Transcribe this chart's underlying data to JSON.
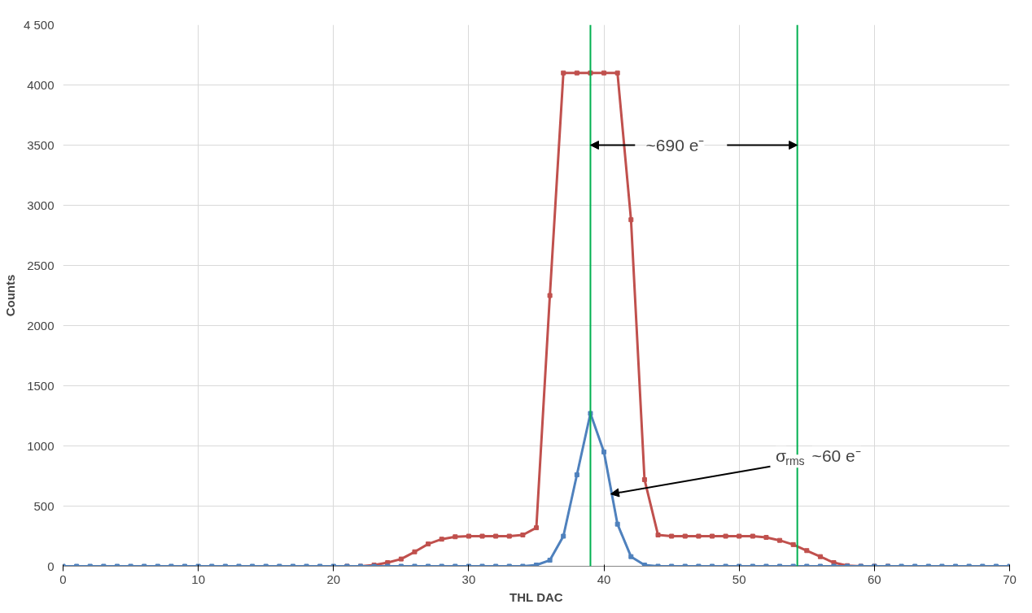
{
  "chart_data": {
    "type": "line",
    "xlabel": "THL DAC",
    "ylabel": "Counts",
    "x": [
      0,
      1,
      2,
      3,
      4,
      5,
      6,
      7,
      8,
      9,
      10,
      11,
      12,
      13,
      14,
      15,
      16,
      17,
      18,
      19,
      20,
      21,
      22,
      23,
      24,
      25,
      26,
      27,
      28,
      29,
      30,
      31,
      32,
      33,
      34,
      35,
      36,
      37,
      38,
      39,
      40,
      41,
      42,
      43,
      44,
      45,
      46,
      47,
      48,
      49,
      50,
      51,
      52,
      53,
      54,
      55,
      56,
      57,
      58,
      59,
      60,
      61,
      62,
      63,
      64,
      65,
      66,
      67,
      68,
      69,
      70
    ],
    "series": [
      {
        "color": "#c0504d",
        "values": [
          null,
          null,
          null,
          null,
          null,
          null,
          null,
          null,
          null,
          null,
          null,
          null,
          null,
          null,
          null,
          null,
          null,
          null,
          null,
          null,
          null,
          0,
          0,
          10,
          30,
          60,
          120,
          185,
          225,
          245,
          250,
          250,
          250,
          250,
          260,
          320,
          2250,
          4100,
          4100,
          4100,
          4100,
          4100,
          2880,
          720,
          260,
          250,
          250,
          250,
          250,
          250,
          250,
          250,
          240,
          215,
          180,
          130,
          80,
          30,
          5,
          0,
          0,
          0,
          null,
          null,
          null,
          null,
          null,
          null,
          null,
          null,
          null
        ]
      },
      {
        "color": "#4f81bd",
        "values": [
          0,
          0,
          0,
          0,
          0,
          0,
          0,
          0,
          0,
          0,
          0,
          0,
          0,
          0,
          0,
          0,
          0,
          0,
          0,
          0,
          0,
          0,
          0,
          0,
          0,
          0,
          0,
          0,
          0,
          0,
          0,
          0,
          0,
          0,
          0,
          10,
          50,
          250,
          760,
          1270,
          950,
          350,
          80,
          10,
          0,
          0,
          0,
          0,
          0,
          0,
          0,
          0,
          0,
          0,
          0,
          0,
          0,
          0,
          0,
          0,
          0,
          0,
          0,
          0,
          0,
          0,
          0,
          0,
          0,
          0,
          0
        ]
      }
    ],
    "xlim": [
      0,
      70
    ],
    "xticks": [
      0,
      10,
      20,
      30,
      40,
      50,
      60,
      70
    ],
    "ylim": [
      0,
      4500
    ],
    "yticks": [
      0,
      500,
      1000,
      1500,
      2000,
      2500,
      3000,
      3500,
      4000,
      {
        "value": 4500,
        "label": "4 500"
      }
    ],
    "grid": true,
    "marker": "square",
    "ref_lines": [
      {
        "axis": "x",
        "value": 39,
        "color": "#00b050"
      },
      {
        "axis": "x",
        "value": 54.3,
        "color": "#00b050"
      }
    ],
    "annotations": [
      {
        "text": "~690 e⁻",
        "x": 39,
        "y": 3500
      },
      {
        "text": "σ$_{rms}$ ~60 e⁻",
        "x": 40.5,
        "y": 600
      }
    ]
  }
}
